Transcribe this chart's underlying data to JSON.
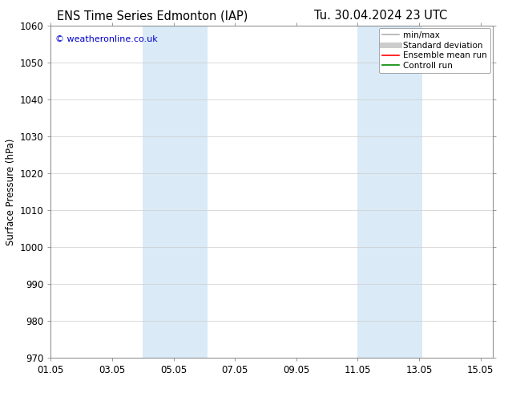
{
  "title_left": "ENS Time Series Edmonton (IAP)",
  "title_right": "Tu. 30.04.2024 23 UTC",
  "ylabel": "Surface Pressure (hPa)",
  "ylim": [
    970,
    1060
  ],
  "yticks": [
    970,
    980,
    990,
    1000,
    1010,
    1020,
    1030,
    1040,
    1050,
    1060
  ],
  "xlim_start": 0.0,
  "xlim_end": 14.4,
  "xtick_labels": [
    "01.05",
    "03.05",
    "05.05",
    "07.05",
    "09.05",
    "11.05",
    "13.05",
    "15.05"
  ],
  "xtick_positions": [
    0.0,
    2.0,
    4.0,
    6.0,
    8.0,
    10.0,
    12.0,
    14.0
  ],
  "shaded_bands": [
    {
      "x_start": 3.0,
      "x_end": 5.1,
      "color": "#daeaf7"
    },
    {
      "x_start": 10.0,
      "x_end": 12.1,
      "color": "#daeaf7"
    }
  ],
  "watermark": "© weatheronline.co.uk",
  "watermark_color": "#0000cc",
  "legend_entries": [
    {
      "label": "min/max",
      "color": "#b0b0b0",
      "lw": 1.2
    },
    {
      "label": "Standard deviation",
      "color": "#cccccc",
      "lw": 5
    },
    {
      "label": "Ensemble mean run",
      "color": "#ff0000",
      "lw": 1.2
    },
    {
      "label": "Controll run",
      "color": "#008800",
      "lw": 1.2
    }
  ],
  "bg_color": "#ffffff",
  "grid_color": "#cccccc",
  "tick_label_fontsize": 8.5,
  "title_fontsize": 10.5,
  "ylabel_fontsize": 8.5,
  "watermark_fontsize": 8.0,
  "legend_fontsize": 7.5
}
